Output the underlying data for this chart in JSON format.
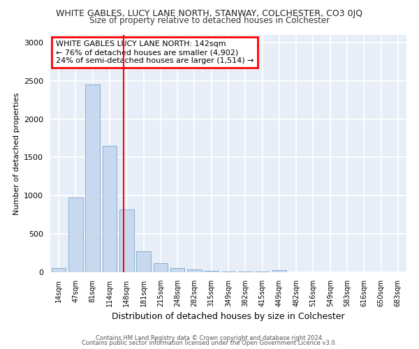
{
  "title": "WHITE GABLES, LUCY LANE NORTH, STANWAY, COLCHESTER, CO3 0JQ",
  "subtitle": "Size of property relative to detached houses in Colchester",
  "xlabel": "Distribution of detached houses by size in Colchester",
  "ylabel": "Number of detached properties",
  "categories": [
    "14sqm",
    "47sqm",
    "81sqm",
    "114sqm",
    "148sqm",
    "181sqm",
    "215sqm",
    "248sqm",
    "282sqm",
    "315sqm",
    "349sqm",
    "382sqm",
    "415sqm",
    "449sqm",
    "482sqm",
    "516sqm",
    "549sqm",
    "583sqm",
    "616sqm",
    "650sqm",
    "683sqm"
  ],
  "values": [
    52,
    980,
    2450,
    1650,
    820,
    270,
    115,
    55,
    40,
    15,
    5,
    5,
    5,
    30,
    0,
    0,
    0,
    0,
    0,
    0,
    0
  ],
  "bar_color": "#c8d8ee",
  "bar_edgecolor": "#7aa8cc",
  "background_color": "#e8eef8",
  "grid_color": "#ffffff",
  "figure_facecolor": "#ffffff",
  "ylim": [
    0,
    3100
  ],
  "yticks": [
    0,
    500,
    1000,
    1500,
    2000,
    2500,
    3000
  ],
  "property_line_x": 3.82,
  "annotation_text": "WHITE GABLES LUCY LANE NORTH: 142sqm\n← 76% of detached houses are smaller (4,902)\n24% of semi-detached houses are larger (1,514) →",
  "footer_line1": "Contains HM Land Registry data © Crown copyright and database right 2024.",
  "footer_line2": "Contains public sector information licensed under the Open Government Licence v3.0."
}
